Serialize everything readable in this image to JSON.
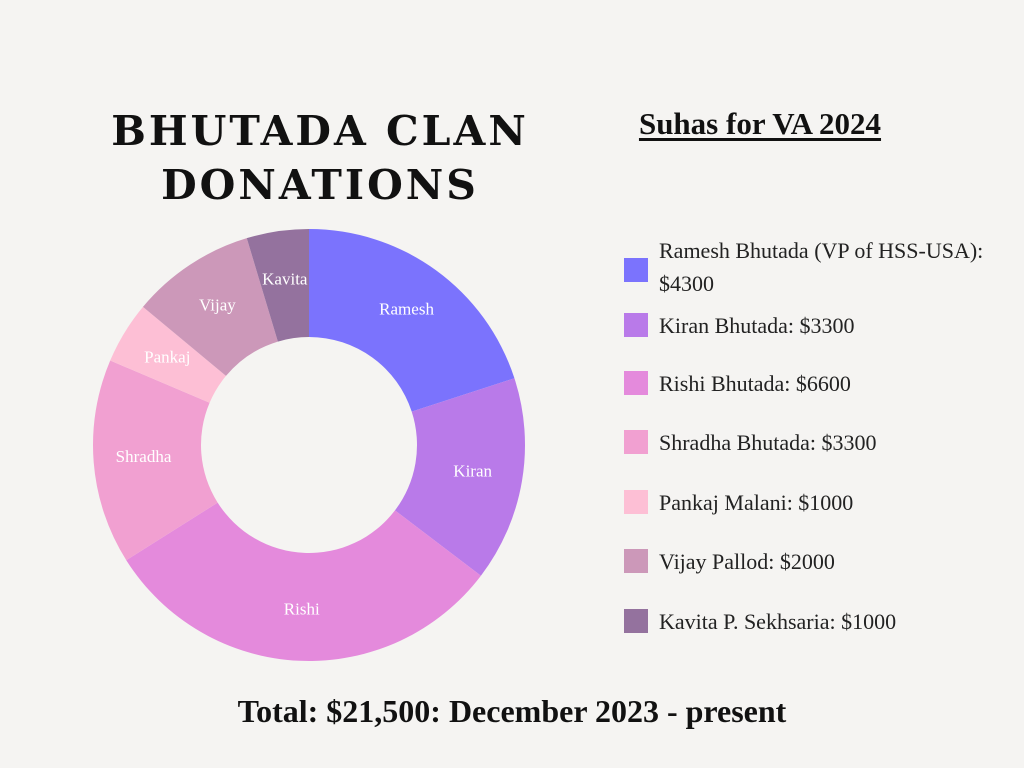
{
  "title_line1": "BHUTADA CLAN",
  "title_line2": "DONATIONS",
  "campaign": "Suhas for VA 2024",
  "total_text": "Total: $21,500: December 2023 - present",
  "chart_data": {
    "type": "pie",
    "donut": true,
    "background": "#f5f4f2",
    "legend_position": "right",
    "start": "top",
    "direction": "clockwise",
    "slices": [
      {
        "label": "Ramesh",
        "value": 4300,
        "color": "#7b73fd"
      },
      {
        "label": "Kiran",
        "value": 3300,
        "color": "#b97ae9"
      },
      {
        "label": "Rishi",
        "value": 6600,
        "color": "#e48adc"
      },
      {
        "label": "Shradha",
        "value": 3300,
        "color": "#f1a0d1"
      },
      {
        "label": "Pankaj",
        "value": 1000,
        "color": "#fdbfd5"
      },
      {
        "label": "Vijay",
        "value": 2000,
        "color": "#cc98b9"
      },
      {
        "label": "Kavita",
        "value": 1000,
        "color": "#94729e"
      }
    ],
    "legend": [
      {
        "text": "Ramesh Bhutada (VP of HSS-USA): $4300",
        "color": "#7b73fd"
      },
      {
        "text": "Kiran Bhutada: $3300",
        "color": "#b97ae9"
      },
      {
        "text": "Rishi Bhutada: $6600",
        "color": "#e48adc"
      },
      {
        "text": "Shradha Bhutada: $3300",
        "color": "#f1a0d1"
      },
      {
        "text": "Pankaj Malani: $1000",
        "color": "#fdbfd5"
      },
      {
        "text": "Vijay Pallod: $2000",
        "color": "#cc98b9"
      },
      {
        "text": "Kavita P. Sekhsaria: $1000",
        "color": "#94729e"
      }
    ]
  }
}
